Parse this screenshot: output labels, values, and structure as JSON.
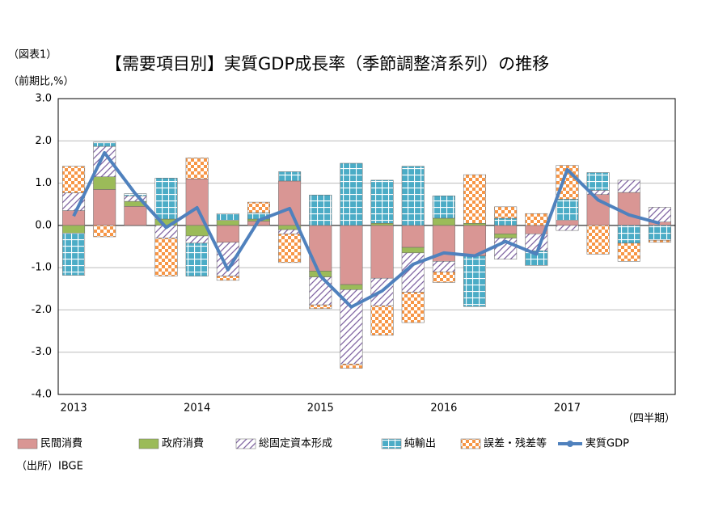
{
  "chart_data": {
    "type": "bar",
    "stacked": true,
    "label": "（図表1）",
    "title": "【需要項目別】実質GDP成長率（季節調整済系列）の推移",
    "y_label": "（前期比,%）",
    "x_label": "（四半期）",
    "source": "（出所）IBGE",
    "categories": [
      "2013",
      null,
      null,
      null,
      "2014",
      null,
      null,
      null,
      "2015",
      null,
      null,
      null,
      "2016",
      null,
      null,
      null,
      "2017",
      null,
      null,
      null
    ],
    "ylim": [
      -4,
      3
    ],
    "yticks": [
      {
        "value": 3,
        "label": "3.0"
      },
      {
        "value": 2,
        "label": "2.0"
      },
      {
        "value": 1,
        "label": "1.0"
      },
      {
        "value": 0,
        "label": "0.0"
      },
      {
        "value": -1,
        "label": "-1.0"
      },
      {
        "value": -2,
        "label": "-2.0"
      },
      {
        "value": -3,
        "label": "-3.0"
      },
      {
        "value": -4,
        "label": "-4.0"
      }
    ],
    "grid": true,
    "legend": "bottom",
    "series": [
      {
        "name": "民間消費",
        "color": "#d99694",
        "pattern": "solid",
        "values": [
          0.35,
          0.85,
          0.45,
          0,
          1.1,
          -0.4,
          0.1,
          1.05,
          -1.08,
          -1.4,
          -1.25,
          -0.52,
          -0.85,
          -0.72,
          -0.2,
          -0.2,
          0.12,
          0.73,
          0.78,
          0.08
        ]
      },
      {
        "name": "政府消費",
        "color": "#9bbb59",
        "pattern": "solid",
        "values": [
          -0.18,
          0.3,
          0.12,
          0.15,
          -0.25,
          0.12,
          0.05,
          -0.1,
          -0.14,
          -0.12,
          0.05,
          -0.13,
          0.17,
          0.05,
          -0.1,
          0,
          0,
          0,
          0,
          0
        ]
      },
      {
        "name": "総固定資本形成",
        "color": "#8064a2",
        "pattern": "hatch",
        "values": [
          0.42,
          0.72,
          0.13,
          -0.3,
          -0.17,
          -0.8,
          0,
          -0.1,
          -0.66,
          -1.76,
          -0.65,
          -0.93,
          -0.25,
          0,
          -0.5,
          -0.4,
          -0.12,
          0.1,
          0.29,
          0.35
        ]
      },
      {
        "name": "純輸出",
        "color": "#4bacc6",
        "pattern": "grid",
        "values": [
          -1.0,
          0.1,
          0.05,
          0.97,
          -0.78,
          0.16,
          0.15,
          0.22,
          0.72,
          1.47,
          1.02,
          1.4,
          0.53,
          -1.2,
          0.17,
          -0.35,
          0.5,
          0.42,
          -0.42,
          -0.35
        ]
      },
      {
        "name": "誤差・残差等",
        "color": "#f79646",
        "pattern": "check",
        "values": [
          0.63,
          -0.27,
          0,
          -0.9,
          0.5,
          -0.1,
          0.25,
          -0.68,
          -0.09,
          -0.1,
          -0.7,
          -0.72,
          -0.25,
          1.15,
          0.27,
          0.28,
          0.8,
          -0.68,
          -0.43,
          -0.05
        ]
      },
      {
        "name": "実質GDP",
        "color": "#4f81bd",
        "type": "line",
        "values": [
          0.22,
          1.72,
          0.75,
          -0.05,
          0.42,
          -1.05,
          0.12,
          0.4,
          -1.2,
          -1.93,
          -1.55,
          -0.92,
          -0.65,
          -0.72,
          -0.38,
          -0.68,
          1.32,
          0.6,
          0.25,
          0.05
        ]
      }
    ]
  }
}
